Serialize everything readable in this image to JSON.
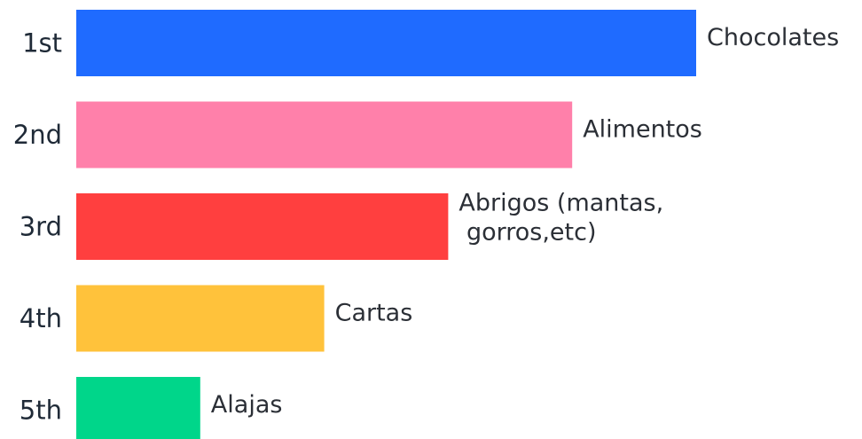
{
  "chart_data": {
    "type": "bar",
    "orientation": "horizontal",
    "ranks": [
      "1st",
      "2nd",
      "3rd",
      "4th",
      "5th"
    ],
    "categories": [
      "Chocolates",
      "Alimentos",
      "Abrigos (mantas, gorros,etc)",
      "Cartas",
      "Alajas"
    ],
    "category_lines": [
      [
        "Chocolates"
      ],
      [
        "Alimentos"
      ],
      [
        "Abrigos (mantas,",
        " gorros,etc)"
      ],
      [
        "Cartas"
      ],
      [
        "Alajas"
      ]
    ],
    "values": [
      5,
      4,
      3,
      2,
      1
    ],
    "colors": [
      "#1f6bff",
      "#ff80aa",
      "#ff3f3f",
      "#ffc23b",
      "#00d68a"
    ],
    "xlim": [
      0,
      5
    ],
    "title": "",
    "xlabel": "",
    "ylabel": "",
    "grid": false,
    "legend": "none"
  }
}
